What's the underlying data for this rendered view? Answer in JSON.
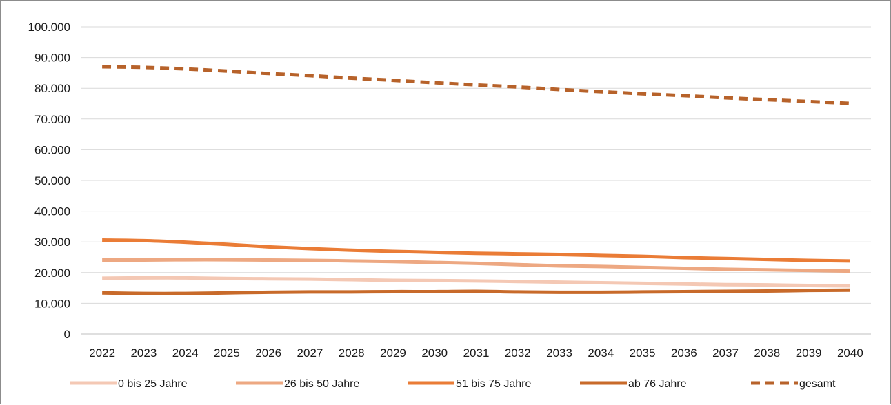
{
  "chart_data": {
    "type": "line",
    "title": "",
    "xlabel": "",
    "ylabel": "",
    "categories": [
      "2022",
      "2023",
      "2024",
      "2025",
      "2026",
      "2027",
      "2028",
      "2029",
      "2030",
      "2031",
      "2032",
      "2033",
      "2034",
      "2035",
      "2036",
      "2037",
      "2038",
      "2039",
      "2040"
    ],
    "ylim": [
      0,
      100000
    ],
    "yticks": [
      0,
      10000,
      20000,
      30000,
      40000,
      50000,
      60000,
      70000,
      80000,
      90000,
      100000
    ],
    "ytick_labels": [
      "0",
      "10.000",
      "20.000",
      "30.000",
      "40.000",
      "50.000",
      "60.000",
      "70.000",
      "80.000",
      "90.000",
      "100.000"
    ],
    "grid": "horizontal",
    "legend_position": "bottom",
    "series": [
      {
        "name": "0 bis 25 Jahre",
        "color": "#f4c8b4",
        "style": "solid",
        "values": [
          18200,
          18300,
          18300,
          18100,
          18000,
          17900,
          17700,
          17500,
          17400,
          17300,
          17100,
          16900,
          16700,
          16500,
          16300,
          16100,
          16000,
          15800,
          15700
        ]
      },
      {
        "name": "26 bis 50 Jahre",
        "color": "#eda882",
        "style": "solid",
        "values": [
          24100,
          24100,
          24200,
          24200,
          24100,
          24000,
          23800,
          23600,
          23300,
          23000,
          22600,
          22200,
          22000,
          21700,
          21400,
          21100,
          20900,
          20700,
          20500
        ]
      },
      {
        "name": "51 bis 75 Jahre",
        "color": "#ea7c36",
        "style": "solid",
        "values": [
          30600,
          30400,
          29900,
          29200,
          28400,
          27800,
          27300,
          26900,
          26600,
          26300,
          26100,
          25900,
          25600,
          25300,
          24900,
          24600,
          24300,
          24000,
          23800
        ]
      },
      {
        "name": "ab 76 Jahre",
        "color": "#c86a2a",
        "style": "solid",
        "values": [
          13400,
          13200,
          13200,
          13400,
          13600,
          13700,
          13700,
          13800,
          13800,
          13900,
          13700,
          13600,
          13600,
          13700,
          13800,
          13900,
          14000,
          14200,
          14300
        ]
      },
      {
        "name": "gesamt",
        "color": "#b7622a",
        "style": "dashed",
        "values": [
          87000,
          86800,
          86300,
          85600,
          84800,
          84100,
          83300,
          82600,
          81800,
          81100,
          80400,
          79600,
          78900,
          78200,
          77600,
          76900,
          76300,
          75700,
          75100
        ]
      }
    ]
  }
}
